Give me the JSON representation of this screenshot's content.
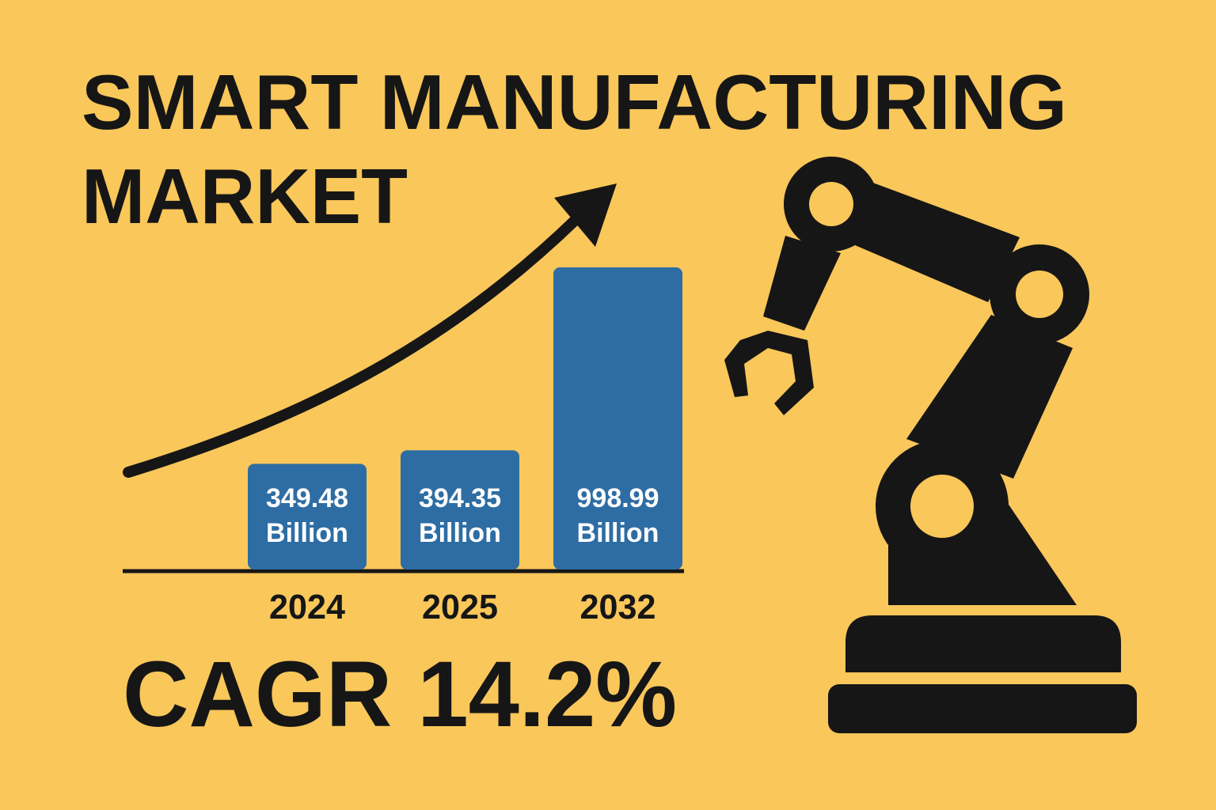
{
  "chart_data": {
    "type": "bar",
    "title": "SMART MANUFACTURING",
    "subtitle": "MARKET",
    "categories": [
      "2024",
      "2025",
      "2032"
    ],
    "values": [
      349.48,
      394.35,
      998.99
    ],
    "value_labels": [
      "349.48 Billion",
      "394.35 Billion",
      "998.99 Billion"
    ],
    "color": "#2e6da4",
    "annotations": [
      "CAGR 14.2%"
    ]
  }
}
